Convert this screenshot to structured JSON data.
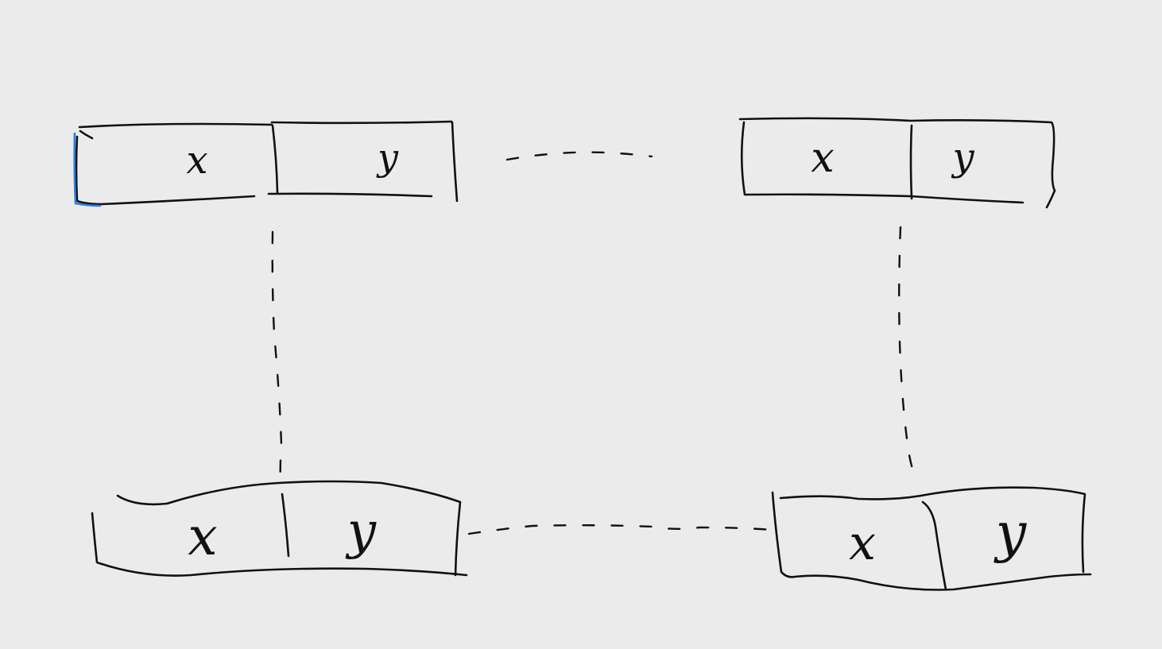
{
  "colors": {
    "background": "#ebebeb",
    "ink": "#111111",
    "highlight": "#2f7de1"
  },
  "boxes": {
    "top_left": {
      "left_label": "x",
      "right_label": "y"
    },
    "top_right": {
      "left_label": "x",
      "right_label": "y"
    },
    "bottom_left": {
      "left_label": "x",
      "right_label": "y"
    },
    "bottom_right": {
      "left_label": "x",
      "right_label": "y"
    }
  }
}
